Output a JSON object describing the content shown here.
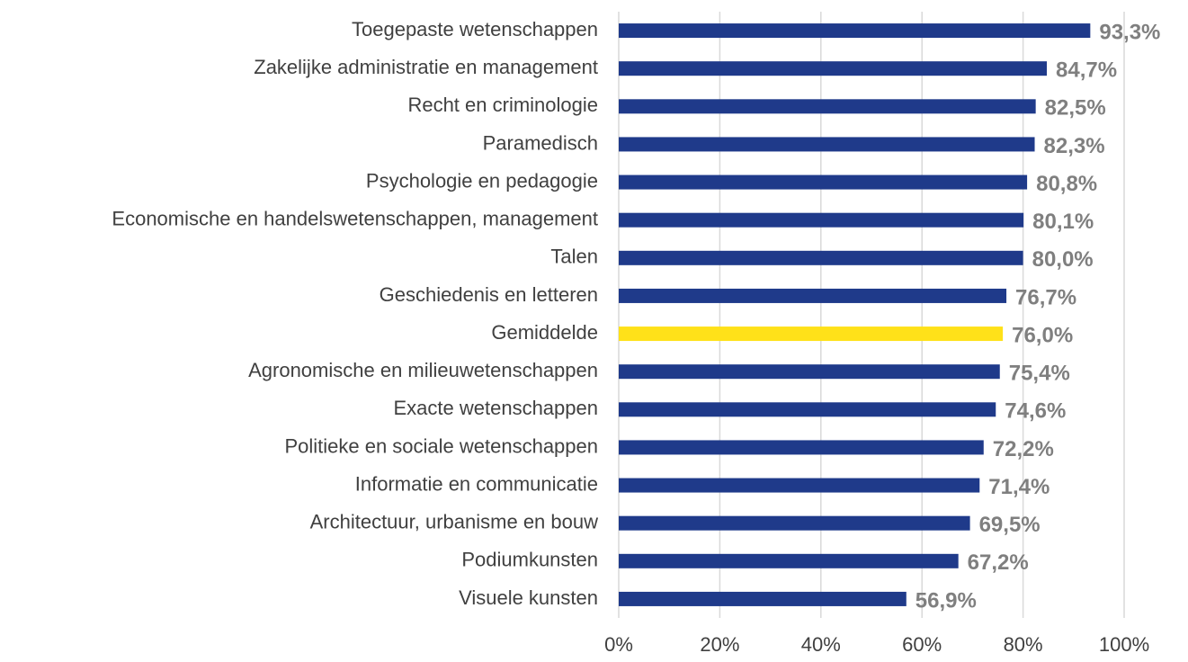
{
  "chart_data": {
    "type": "bar",
    "orientation": "horizontal",
    "categories": [
      "Toegepaste wetenschappen",
      "Zakelijke administratie en management",
      "Recht en criminologie",
      "Paramedisch",
      "Psychologie en pedagogie",
      "Economische en handelswetenschappen, management",
      "Talen",
      "Geschiedenis en letteren",
      "Gemiddelde",
      "Agronomische en milieuwetenschappen",
      "Exacte wetenschappen",
      "Politieke en sociale wetenschappen",
      "Informatie en communicatie",
      "Architectuur, urbanisme en bouw",
      "Podiumkunsten",
      "Visuele kunsten"
    ],
    "values": [
      93.3,
      84.7,
      82.5,
      82.3,
      80.8,
      80.1,
      80.0,
      76.7,
      76.0,
      75.4,
      74.6,
      72.2,
      71.4,
      69.5,
      67.2,
      56.9
    ],
    "value_labels": [
      "93,3%",
      "84,7%",
      "82,5%",
      "82,3%",
      "80,8%",
      "80,1%",
      "80,0%",
      "76,7%",
      "76,0%",
      "75,4%",
      "74,6%",
      "72,2%",
      "71,4%",
      "69,5%",
      "67,2%",
      "56,9%"
    ],
    "colors": [
      "#1f3a8a",
      "#1f3a8a",
      "#1f3a8a",
      "#1f3a8a",
      "#1f3a8a",
      "#1f3a8a",
      "#1f3a8a",
      "#1f3a8a",
      "#ffe119",
      "#1f3a8a",
      "#1f3a8a",
      "#1f3a8a",
      "#1f3a8a",
      "#1f3a8a",
      "#1f3a8a",
      "#1f3a8a"
    ],
    "xlim": [
      0,
      100
    ],
    "xticks": [
      {
        "value": 0,
        "label": "0%"
      },
      {
        "value": 20,
        "label": "20%"
      },
      {
        "value": 40,
        "label": "40%"
      },
      {
        "value": 60,
        "label": "60%"
      },
      {
        "value": 80,
        "label": "80%"
      },
      {
        "value": 100,
        "label": "100%"
      }
    ],
    "grid": true
  }
}
